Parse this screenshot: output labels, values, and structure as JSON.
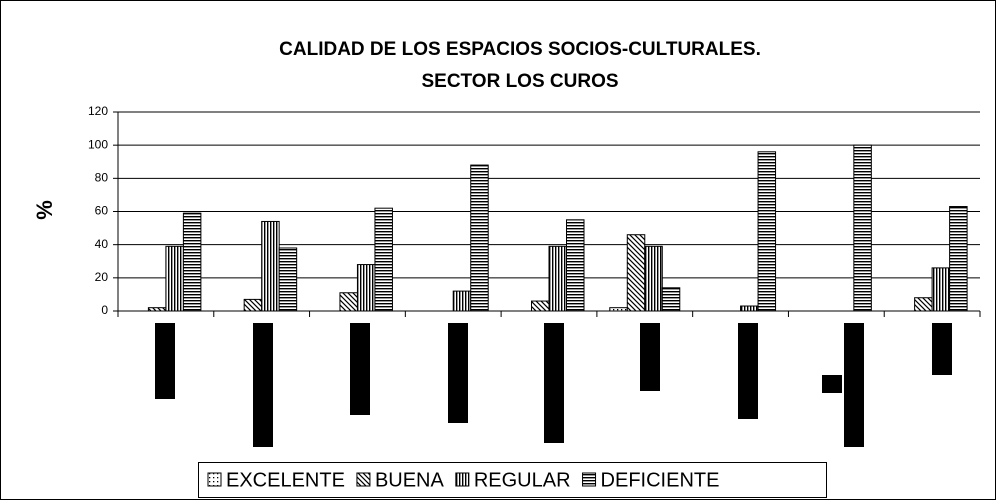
{
  "chart_data": {
    "type": "bar",
    "title": [
      "CALIDAD DE LOS ESPACIOS SOCIOS-CULTURALES.",
      "SECTOR LOS CUROS"
    ],
    "y_label": "%",
    "categories": [
      null,
      null,
      null,
      null,
      null,
      null,
      null,
      null,
      null
    ],
    "series": [
      {
        "name": "EXCELENTE",
        "color": "#000000",
        "pattern": "dots",
        "values": [
          0,
          0,
          0,
          0,
          0,
          2,
          0,
          0,
          0
        ]
      },
      {
        "name": "BUENA",
        "color": "#000000",
        "pattern": "diagonal",
        "values": [
          2,
          7,
          11,
          0,
          6,
          46,
          0,
          0,
          8
        ]
      },
      {
        "name": "REGULAR",
        "color": "#000000",
        "pattern": "vertical",
        "values": [
          39,
          54,
          28,
          12,
          39,
          39,
          3,
          0,
          26
        ]
      },
      {
        "name": "DEFICIENTE",
        "color": "#000000",
        "pattern": "horizontal",
        "values": [
          59,
          38,
          62,
          88,
          55,
          14,
          96,
          100,
          63
        ]
      }
    ],
    "ylim": [
      0,
      120
    ],
    "yticks": [
      0,
      20,
      40,
      60,
      80,
      100,
      120
    ],
    "grid": true,
    "legend": "bottom"
  }
}
